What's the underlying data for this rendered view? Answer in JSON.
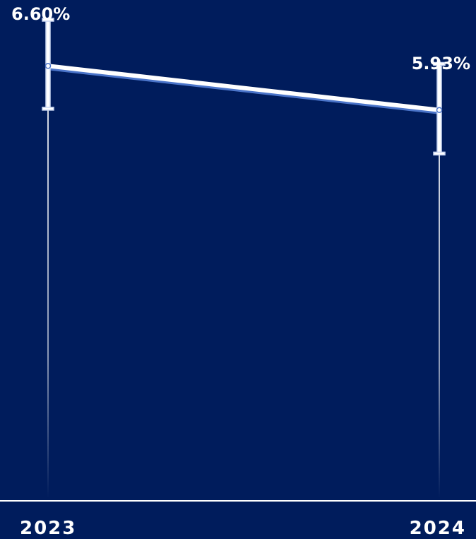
{
  "chart_data": {
    "type": "line",
    "title": "",
    "xlabel": "",
    "ylabel": "",
    "categories": [
      "2023",
      "2024"
    ],
    "series": [
      {
        "values": [
          6.6,
          5.93
        ],
        "labels": [
          "6.60%",
          "5.93%"
        ],
        "error_low": [
          5.95,
          5.27
        ],
        "error_high": [
          7.3,
          6.63
        ]
      }
    ],
    "ylim": [
      0,
      7.6
    ],
    "grid": false,
    "legend": "none",
    "colors": {
      "background": "#001c5c",
      "line": "#ffffff",
      "line_shadow": "#4a74c9",
      "error_bar": "#c9d6f2",
      "axis": "#ffffff"
    }
  }
}
